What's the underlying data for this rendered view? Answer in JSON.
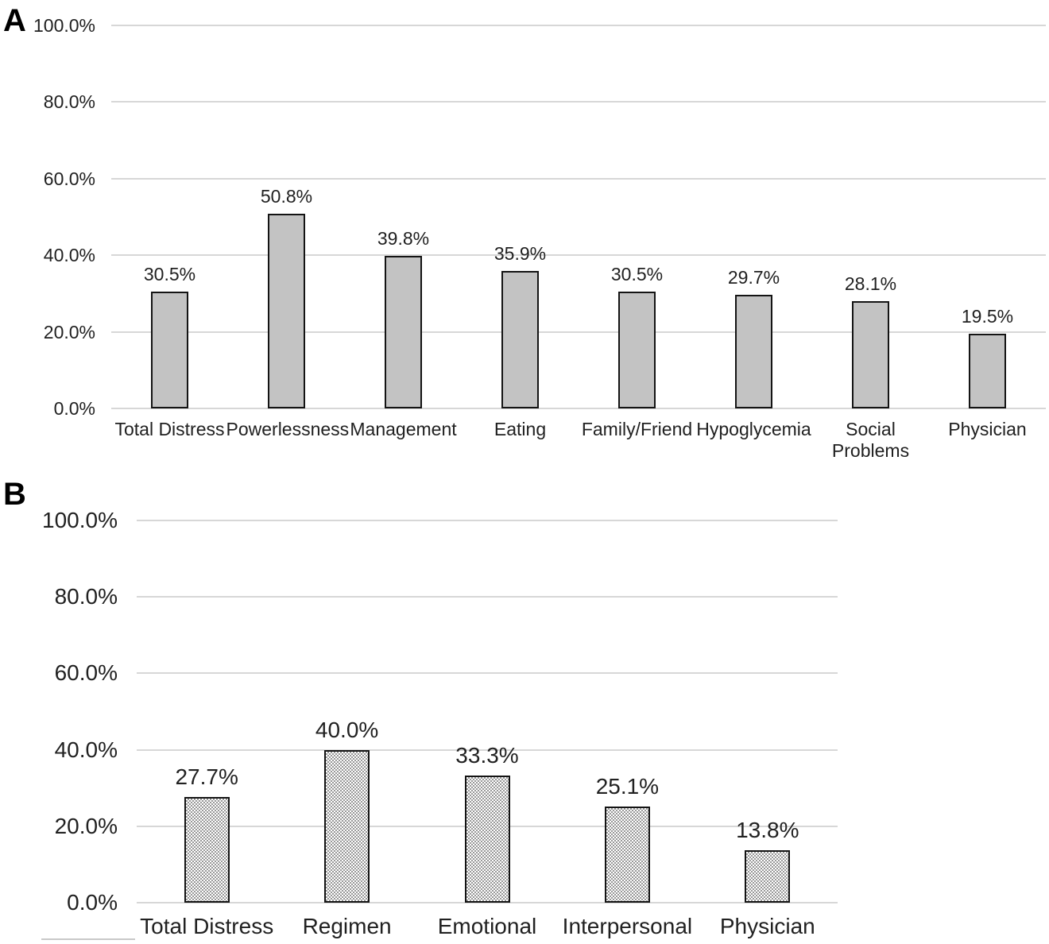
{
  "figure": {
    "panel_a_letter": "A",
    "panel_b_letter": "B"
  },
  "chart_data": [
    {
      "type": "bar",
      "panel_label": "A",
      "title": "",
      "xlabel": "",
      "ylabel": "",
      "categories": [
        "Total Distress",
        "Powerlessness",
        "Management",
        "Eating",
        "Family/Friend",
        "Hypoglycemia",
        "Social\nProblems",
        "Physician"
      ],
      "values": [
        30.5,
        50.8,
        39.8,
        35.9,
        30.5,
        29.7,
        28.1,
        19.5
      ],
      "bar_labels": [
        "30.5%",
        "50.8%",
        "39.8%",
        "35.9%",
        "30.5%",
        "29.7%",
        "28.1%",
        "19.5%"
      ],
      "yticks": [
        100,
        80,
        60,
        40,
        20,
        0
      ],
      "ytick_labels": [
        "100.0%",
        "80.0%",
        "60.0%",
        "40.0%",
        "20.0%",
        "0.0%"
      ],
      "ylim": [
        0,
        100
      ],
      "grid": true,
      "legend": "none",
      "bar_fill_style": "solid",
      "colors": {
        "bar_fill": "#c3c3c3",
        "bar_border": "#141414",
        "gridline": "#d7d7d7",
        "text": "#212121"
      }
    },
    {
      "type": "bar",
      "panel_label": "B",
      "title": "",
      "xlabel": "",
      "ylabel": "",
      "categories": [
        "Total Distress",
        "Regimen",
        "Emotional",
        "Interpersonal",
        "Physician"
      ],
      "values": [
        27.7,
        40.0,
        33.3,
        25.1,
        13.8
      ],
      "bar_labels": [
        "27.7%",
        "40.0%",
        "33.3%",
        "25.1%",
        "13.8%"
      ],
      "yticks": [
        100,
        80,
        60,
        40,
        20,
        0
      ],
      "ytick_labels": [
        "100.0%",
        "80.0%",
        "60.0%",
        "40.0%",
        "20.0%",
        "0.0%"
      ],
      "ylim": [
        0,
        100
      ],
      "grid": true,
      "legend": "none",
      "bar_fill_style": "checker-dot-pattern",
      "colors": {
        "bar_fill_dot": "#989898",
        "bar_fill_bg": "#ffffff",
        "bar_border": "#141414",
        "gridline": "#d7d7d7",
        "text": "#212121"
      }
    }
  ]
}
